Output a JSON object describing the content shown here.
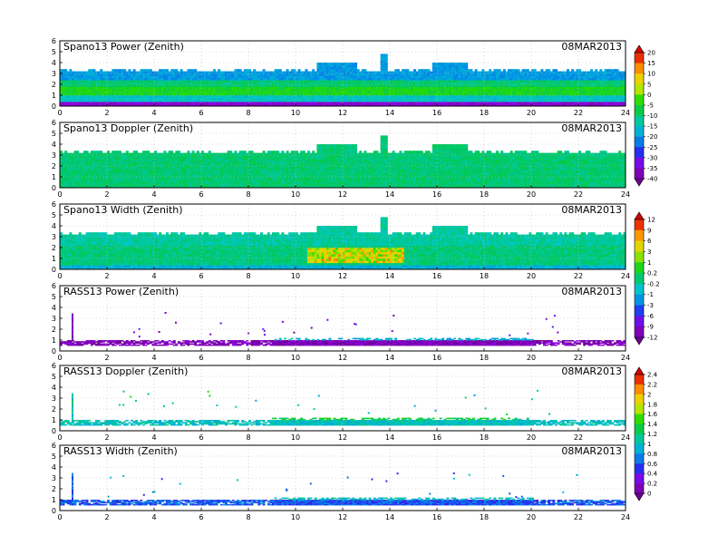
{
  "chart_data": [
    {
      "type": "heatmap",
      "title": "Spano13 Power (Zenith)",
      "date": "08MAR2013",
      "xlim": [
        0,
        24
      ],
      "ylim": [
        0,
        6
      ],
      "x_ticks": [
        "0",
        "2",
        "4",
        "6",
        "8",
        "10",
        "12",
        "14",
        "16",
        "18",
        "20",
        "22",
        "24"
      ],
      "y_ticks": [
        "0",
        "1",
        "2",
        "3",
        "4",
        "5",
        "6"
      ],
      "grid": true,
      "colorbar": {
        "ticks": [
          "20",
          "15",
          "10",
          "5",
          "0",
          "-5",
          "-10",
          "-15",
          "-20",
          "-25",
          "-30",
          "-35",
          "-40"
        ],
        "vmin": -40,
        "vmax": 20
      },
      "field": {
        "top_km": 3.2,
        "bands": [
          {
            "from": 0.0,
            "to": 0.3,
            "value": -35
          },
          {
            "from": 0.3,
            "to": 1.0,
            "value": -15
          },
          {
            "from": 1.0,
            "to": 1.6,
            "value": -5
          },
          {
            "from": 1.6,
            "to": 2.3,
            "value": -10
          },
          {
            "from": 2.3,
            "to": 3.2,
            "value": -20
          }
        ],
        "top_extensions": [
          {
            "x0": 10.9,
            "x1": 12.6,
            "top": 3.9
          },
          {
            "x0": 15.8,
            "x1": 17.2,
            "top": 3.9
          },
          {
            "x0": 13.6,
            "x1": 13.8,
            "top": 4.8
          }
        ]
      }
    },
    {
      "type": "heatmap",
      "title": "Spano13 Doppler (Zenith)",
      "date": "08MAR2013",
      "xlim": [
        0,
        24
      ],
      "ylim": [
        0,
        6
      ],
      "x_ticks": [
        "0",
        "2",
        "4",
        "6",
        "8",
        "10",
        "12",
        "14",
        "16",
        "18",
        "20",
        "22",
        "24"
      ],
      "y_ticks": [
        "0",
        "1",
        "2",
        "3",
        "4",
        "5",
        "6"
      ],
      "grid": true,
      "field": {
        "top_km": 3.2,
        "bands": [
          {
            "from": 0.0,
            "to": 3.2,
            "value": -10
          }
        ],
        "top_extensions": [
          {
            "x0": 10.9,
            "x1": 12.6,
            "top": 3.9
          },
          {
            "x0": 15.8,
            "x1": 17.2,
            "top": 3.9
          },
          {
            "x0": 13.6,
            "x1": 13.8,
            "top": 4.8
          }
        ]
      }
    },
    {
      "type": "heatmap",
      "title": "Spano13 Width (Zenith)",
      "date": "08MAR2013",
      "xlim": [
        0,
        24
      ],
      "ylim": [
        0,
        6
      ],
      "x_ticks": [
        "0",
        "2",
        "4",
        "6",
        "8",
        "10",
        "12",
        "14",
        "16",
        "18",
        "20",
        "22",
        "24"
      ],
      "y_ticks": [
        "0",
        "1",
        "2",
        "3",
        "4",
        "5",
        "6"
      ],
      "grid": true,
      "colorbar": {
        "ticks": [
          "12",
          "9",
          "6",
          "3",
          "1",
          "0.2",
          "-0.2",
          "-1",
          "-3",
          "-6",
          "-9",
          "-12"
        ],
        "vmin": -12,
        "vmax": 12
      },
      "field": {
        "top_km": 3.2,
        "bands": [
          {
            "from": 0.0,
            "to": 0.4,
            "value": -3
          },
          {
            "from": 0.4,
            "to": 2.0,
            "value": -0.2
          },
          {
            "from": 2.0,
            "to": 3.2,
            "value": -1
          }
        ],
        "hot_spot": {
          "x0": 10.5,
          "x1": 14.5,
          "y0": 0.5,
          "y1": 1.8,
          "value": 6
        },
        "top_extensions": [
          {
            "x0": 10.9,
            "x1": 12.6,
            "top": 3.9
          },
          {
            "x0": 15.8,
            "x1": 17.2,
            "top": 3.9
          },
          {
            "x0": 13.6,
            "x1": 13.8,
            "top": 4.8
          }
        ]
      }
    },
    {
      "type": "heatmap",
      "title": "RASS13 Power (Zenith)",
      "date": "08MAR2013",
      "xlim": [
        0,
        24
      ],
      "ylim": [
        0,
        6
      ],
      "x_ticks": [
        "0",
        "2",
        "4",
        "6",
        "8",
        "10",
        "12",
        "14",
        "16",
        "18",
        "20",
        "22",
        "24"
      ],
      "y_ticks": [
        "0",
        "1",
        "2",
        "3",
        "4",
        "5",
        "6"
      ],
      "grid": true,
      "field": {
        "layer": {
          "from": 0.5,
          "to": 0.9,
          "value": -11
        },
        "busy": {
          "x0": 9.0,
          "x1": 20.0,
          "top": 1.2,
          "value": -3
        },
        "spike": {
          "x": 0.5,
          "top": 3.3
        }
      }
    },
    {
      "type": "heatmap",
      "title": "RASS13 Doppler (Zenith)",
      "date": "08MAR2013",
      "xlim": [
        0,
        24
      ],
      "ylim": [
        0,
        6
      ],
      "x_ticks": [
        "0",
        "2",
        "4",
        "6",
        "8",
        "10",
        "12",
        "14",
        "16",
        "18",
        "20",
        "22",
        "24"
      ],
      "y_ticks": [
        "0",
        "1",
        "2",
        "3",
        "4",
        "5",
        "6"
      ],
      "grid": true,
      "colorbar": {
        "ticks": [
          "2.4",
          "2.2",
          "2",
          "1.8",
          "1.6",
          "1.4",
          "1.2",
          "1",
          "0.8",
          "0.6",
          "0.4",
          "0.2",
          "0"
        ],
        "vmin": 0,
        "vmax": 2.4
      },
      "field": {
        "layer": {
          "from": 0.5,
          "to": 0.9,
          "value": 1.0
        },
        "busy": {
          "x0": 9.0,
          "x1": 20.0,
          "top": 1.2,
          "value": 1.3
        },
        "spike": {
          "x": 0.5,
          "top": 3.3
        }
      }
    },
    {
      "type": "heatmap",
      "title": "RASS13 Width (Zenith)",
      "date": "08MAR2013",
      "xlim": [
        0,
        24
      ],
      "ylim": [
        0,
        6
      ],
      "x_ticks": [
        "0",
        "2",
        "4",
        "6",
        "8",
        "10",
        "12",
        "14",
        "16",
        "18",
        "20",
        "22",
        "24"
      ],
      "y_ticks": [
        "0",
        "1",
        "2",
        "3",
        "4",
        "5",
        "6"
      ],
      "grid": true,
      "field": {
        "layer": {
          "from": 0.5,
          "to": 0.9,
          "value": 0.6
        },
        "busy": {
          "x0": 9.0,
          "x1": 20.0,
          "top": 1.2,
          "value": 1.0
        },
        "spike": {
          "x": 0.5,
          "top": 3.3
        }
      }
    }
  ]
}
